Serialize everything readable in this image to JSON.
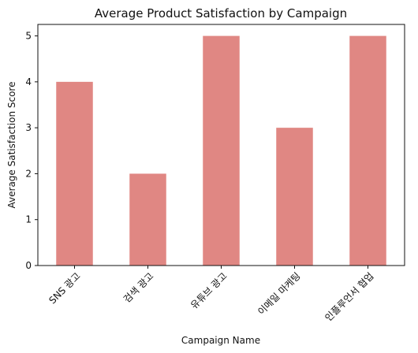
{
  "chart_data": {
    "type": "bar",
    "title": "Average Product Satisfaction by Campaign",
    "xlabel": "Campaign Name",
    "ylabel": "Average Satisfaction Score",
    "categories": [
      "SNS 광고",
      "검색 광고",
      "유튜브 광고",
      "이메일 마케팅",
      "인플루언서 협업"
    ],
    "values": [
      4,
      2,
      5,
      3,
      5
    ],
    "ylim": [
      0,
      5.25
    ],
    "yticks": [
      "0",
      "1",
      "2",
      "3",
      "4",
      "5"
    ],
    "grid": false,
    "bar_color": "#e08783"
  }
}
